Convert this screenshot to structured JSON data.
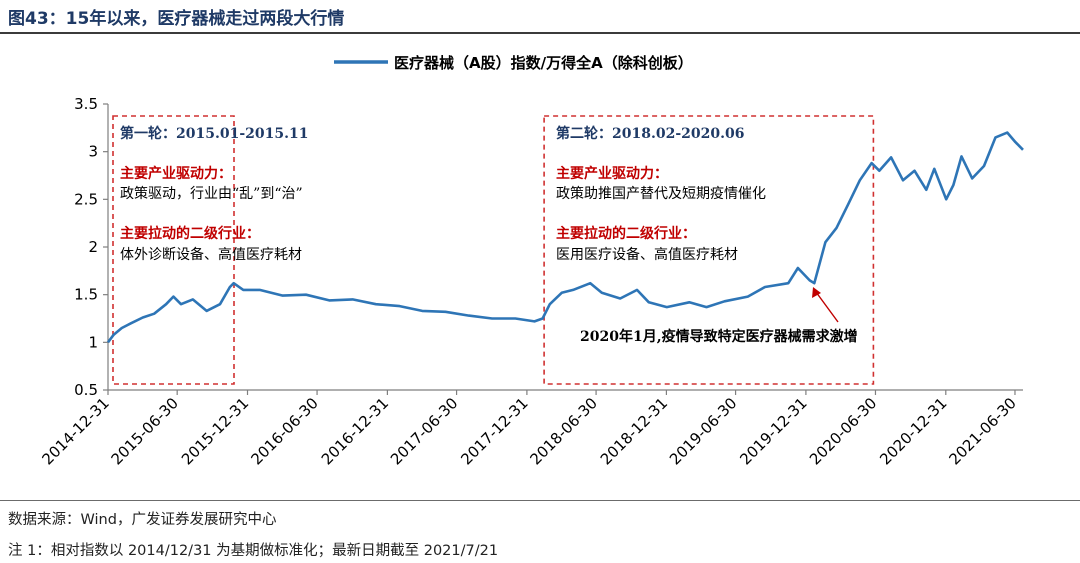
{
  "figure_title": "图43：15年以来，医疗器械走过两段大行情",
  "source_text": "数据来源：Wind，广发证券发展研究中心",
  "note_text": "注 1：相对指数以 2014/12/31 为基期做标准化；最新日期截至 2021/7/21",
  "colors": {
    "line": "#2e75b6",
    "red": "#c00000",
    "navy": "#1f3a66",
    "box": "#d03030"
  },
  "chart_data": {
    "type": "line",
    "title": "",
    "xlabel": "",
    "ylabel": "",
    "legend": {
      "position": "top-center",
      "label": "医疗器械（A股）指数/万得全A（除科创板）"
    },
    "ylim": [
      0.5,
      3.5
    ],
    "yticks": [
      "0.5",
      "1",
      "1.5",
      "2",
      "2.5",
      "3",
      "3.5"
    ],
    "xlim": [
      "2014-12-31",
      "2021-07-21"
    ],
    "xticks": [
      "2014-12-31",
      "2015-06-30",
      "2015-12-31",
      "2016-06-30",
      "2016-12-31",
      "2017-06-30",
      "2017-12-31",
      "2018-06-30",
      "2018-12-31",
      "2019-06-30",
      "2019-12-31",
      "2020-06-30",
      "2020-12-31",
      "2021-06-30"
    ],
    "grid": false,
    "series": [
      {
        "name": "医疗器械（A股）指数/万得全A（除科创板）",
        "points": [
          [
            "2014-12-31",
            1.0
          ],
          [
            "2015-01-15",
            1.08
          ],
          [
            "2015-02-05",
            1.15
          ],
          [
            "2015-03-01",
            1.2
          ],
          [
            "2015-04-01",
            1.26
          ],
          [
            "2015-05-01",
            1.3
          ],
          [
            "2015-06-01",
            1.4
          ],
          [
            "2015-06-20",
            1.48
          ],
          [
            "2015-07-10",
            1.4
          ],
          [
            "2015-08-10",
            1.45
          ],
          [
            "2015-09-15",
            1.33
          ],
          [
            "2015-10-20",
            1.4
          ],
          [
            "2015-11-15",
            1.58
          ],
          [
            "2015-11-25",
            1.62
          ],
          [
            "2015-12-20",
            1.55
          ],
          [
            "2016-02-01",
            1.55
          ],
          [
            "2016-04-01",
            1.49
          ],
          [
            "2016-06-01",
            1.5
          ],
          [
            "2016-08-01",
            1.44
          ],
          [
            "2016-10-01",
            1.45
          ],
          [
            "2016-12-01",
            1.4
          ],
          [
            "2017-02-01",
            1.38
          ],
          [
            "2017-04-01",
            1.33
          ],
          [
            "2017-06-01",
            1.32
          ],
          [
            "2017-08-01",
            1.28
          ],
          [
            "2017-10-01",
            1.25
          ],
          [
            "2017-12-01",
            1.25
          ],
          [
            "2018-01-20",
            1.22
          ],
          [
            "2018-02-10",
            1.25
          ],
          [
            "2018-03-01",
            1.4
          ],
          [
            "2018-04-01",
            1.52
          ],
          [
            "2018-05-01",
            1.55
          ],
          [
            "2018-06-15",
            1.62
          ],
          [
            "2018-07-15",
            1.52
          ],
          [
            "2018-09-01",
            1.46
          ],
          [
            "2018-10-15",
            1.55
          ],
          [
            "2018-11-15",
            1.42
          ],
          [
            "2019-01-01",
            1.37
          ],
          [
            "2019-03-01",
            1.42
          ],
          [
            "2019-04-15",
            1.37
          ],
          [
            "2019-06-01",
            1.43
          ],
          [
            "2019-08-01",
            1.48
          ],
          [
            "2019-09-15",
            1.58
          ],
          [
            "2019-11-15",
            1.62
          ],
          [
            "2019-12-10",
            1.78
          ],
          [
            "2020-01-10",
            1.65
          ],
          [
            "2020-01-22",
            1.62
          ],
          [
            "2020-02-20",
            2.05
          ],
          [
            "2020-03-20",
            2.2
          ],
          [
            "2020-04-20",
            2.45
          ],
          [
            "2020-05-20",
            2.7
          ],
          [
            "2020-06-20",
            2.88
          ],
          [
            "2020-07-10",
            2.8
          ],
          [
            "2020-08-10",
            2.94
          ],
          [
            "2020-09-10",
            2.7
          ],
          [
            "2020-10-10",
            2.8
          ],
          [
            "2020-11-10",
            2.6
          ],
          [
            "2020-12-01",
            2.82
          ],
          [
            "2021-01-01",
            2.5
          ],
          [
            "2021-01-20",
            2.65
          ],
          [
            "2021-02-10",
            2.95
          ],
          [
            "2021-03-10",
            2.72
          ],
          [
            "2021-04-10",
            2.85
          ],
          [
            "2021-05-10",
            3.15
          ],
          [
            "2021-06-10",
            3.2
          ],
          [
            "2021-07-01",
            3.1
          ],
          [
            "2021-07-21",
            3.02
          ]
        ]
      }
    ],
    "annotations": {
      "box1": {
        "range": [
          "2014-12-31",
          "2015-12-01"
        ],
        "heading": "第一轮：2015.01-2015.11",
        "driver_label": "主要产业驱动力：",
        "driver_text": "政策驱动，行业由“乱”到“治”",
        "sector_label": "主要拉动的二级行业：",
        "sector_text": "体外诊断设备、高值医疗耗材"
      },
      "box2": {
        "range": [
          "2018-02-01",
          "2020-06-30"
        ],
        "heading": "第二轮：2018.02-2020.06",
        "driver_label": "主要产业驱动力：",
        "driver_text": "政策助推国产替代及短期疫情催化",
        "sector_label": "主要拉动的二级行业：",
        "sector_text": "医用医疗设备、高值医疗耗材"
      },
      "covid_note": {
        "text": "2020年1月,疫情导致特定医疗器械需求激增",
        "date": "2020-01-22",
        "value": 1.62
      }
    }
  }
}
